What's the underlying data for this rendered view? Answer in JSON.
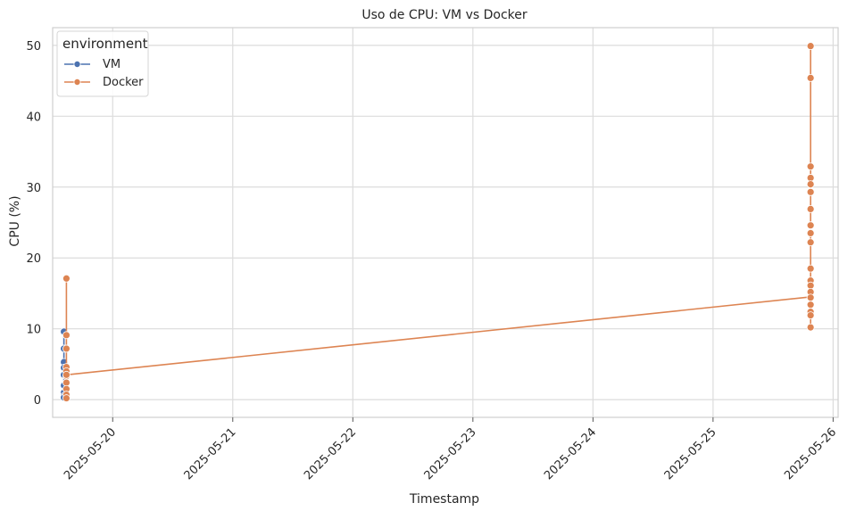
{
  "chart_data": {
    "type": "line",
    "title": "Uso de CPU: VM vs Docker",
    "xlabel": "Timestamp",
    "ylabel": "CPU (%)",
    "x_axis_type": "date",
    "xlim": [
      "2025-05-19T12:00",
      "2025-05-26T01:00"
    ],
    "ylim": [
      -2.5,
      52.5
    ],
    "xticks": [
      "2025-05-20",
      "2025-05-21",
      "2025-05-22",
      "2025-05-23",
      "2025-05-24",
      "2025-05-25",
      "2025-05-26"
    ],
    "yticks": [
      0,
      10,
      20,
      30,
      40,
      50
    ],
    "grid": true,
    "legend": {
      "title": "environment",
      "position": "top-left"
    },
    "series": [
      {
        "name": "VM",
        "color": "#4c72b0",
        "points": [
          {
            "x": "2025-05-19T14:15",
            "y": 9.6
          },
          {
            "x": "2025-05-19T14:15",
            "y": 7.2
          },
          {
            "x": "2025-05-19T14:15",
            "y": 5.3
          },
          {
            "x": "2025-05-19T14:15",
            "y": 4.5
          },
          {
            "x": "2025-05-19T14:15",
            "y": 3.5
          },
          {
            "x": "2025-05-19T14:15",
            "y": 2.0
          },
          {
            "x": "2025-05-19T14:15",
            "y": 1.0
          },
          {
            "x": "2025-05-19T14:15",
            "y": 0.5
          },
          {
            "x": "2025-05-19T14:15",
            "y": 0.3
          }
        ]
      },
      {
        "name": "Docker",
        "color": "#dd8452",
        "points": [
          {
            "x": "2025-05-19T14:45",
            "y": 17.1
          },
          {
            "x": "2025-05-19T14:45",
            "y": 9.1
          },
          {
            "x": "2025-05-19T14:45",
            "y": 7.2
          },
          {
            "x": "2025-05-19T14:45",
            "y": 4.6
          },
          {
            "x": "2025-05-19T14:45",
            "y": 4.0
          },
          {
            "x": "2025-05-19T14:45",
            "y": 3.3
          },
          {
            "x": "2025-05-19T14:45",
            "y": 2.4
          },
          {
            "x": "2025-05-19T14:45",
            "y": 1.5
          },
          {
            "x": "2025-05-19T14:45",
            "y": 0.7
          },
          {
            "x": "2025-05-19T14:45",
            "y": 0.2
          },
          {
            "x": "2025-05-19T14:45",
            "y": 3.5
          },
          {
            "x": "2025-05-25T19:30",
            "y": 14.5
          },
          {
            "x": "2025-05-25T19:30",
            "y": 49.9
          },
          {
            "x": "2025-05-25T19:30",
            "y": 45.4
          },
          {
            "x": "2025-05-25T19:30",
            "y": 32.9
          },
          {
            "x": "2025-05-25T19:30",
            "y": 31.3
          },
          {
            "x": "2025-05-25T19:30",
            "y": 30.4
          },
          {
            "x": "2025-05-25T19:30",
            "y": 29.3
          },
          {
            "x": "2025-05-25T19:30",
            "y": 26.9
          },
          {
            "x": "2025-05-25T19:30",
            "y": 24.6
          },
          {
            "x": "2025-05-25T19:30",
            "y": 23.5
          },
          {
            "x": "2025-05-25T19:30",
            "y": 22.2
          },
          {
            "x": "2025-05-25T19:30",
            "y": 18.5
          },
          {
            "x": "2025-05-25T19:30",
            "y": 16.8
          },
          {
            "x": "2025-05-25T19:30",
            "y": 16.1
          },
          {
            "x": "2025-05-25T19:30",
            "y": 15.2
          },
          {
            "x": "2025-05-25T19:30",
            "y": 14.4
          },
          {
            "x": "2025-05-25T19:30",
            "y": 13.4
          },
          {
            "x": "2025-05-25T19:30",
            "y": 12.4
          },
          {
            "x": "2025-05-25T19:30",
            "y": 11.9
          },
          {
            "x": "2025-05-25T19:30",
            "y": 10.2
          }
        ]
      }
    ]
  }
}
